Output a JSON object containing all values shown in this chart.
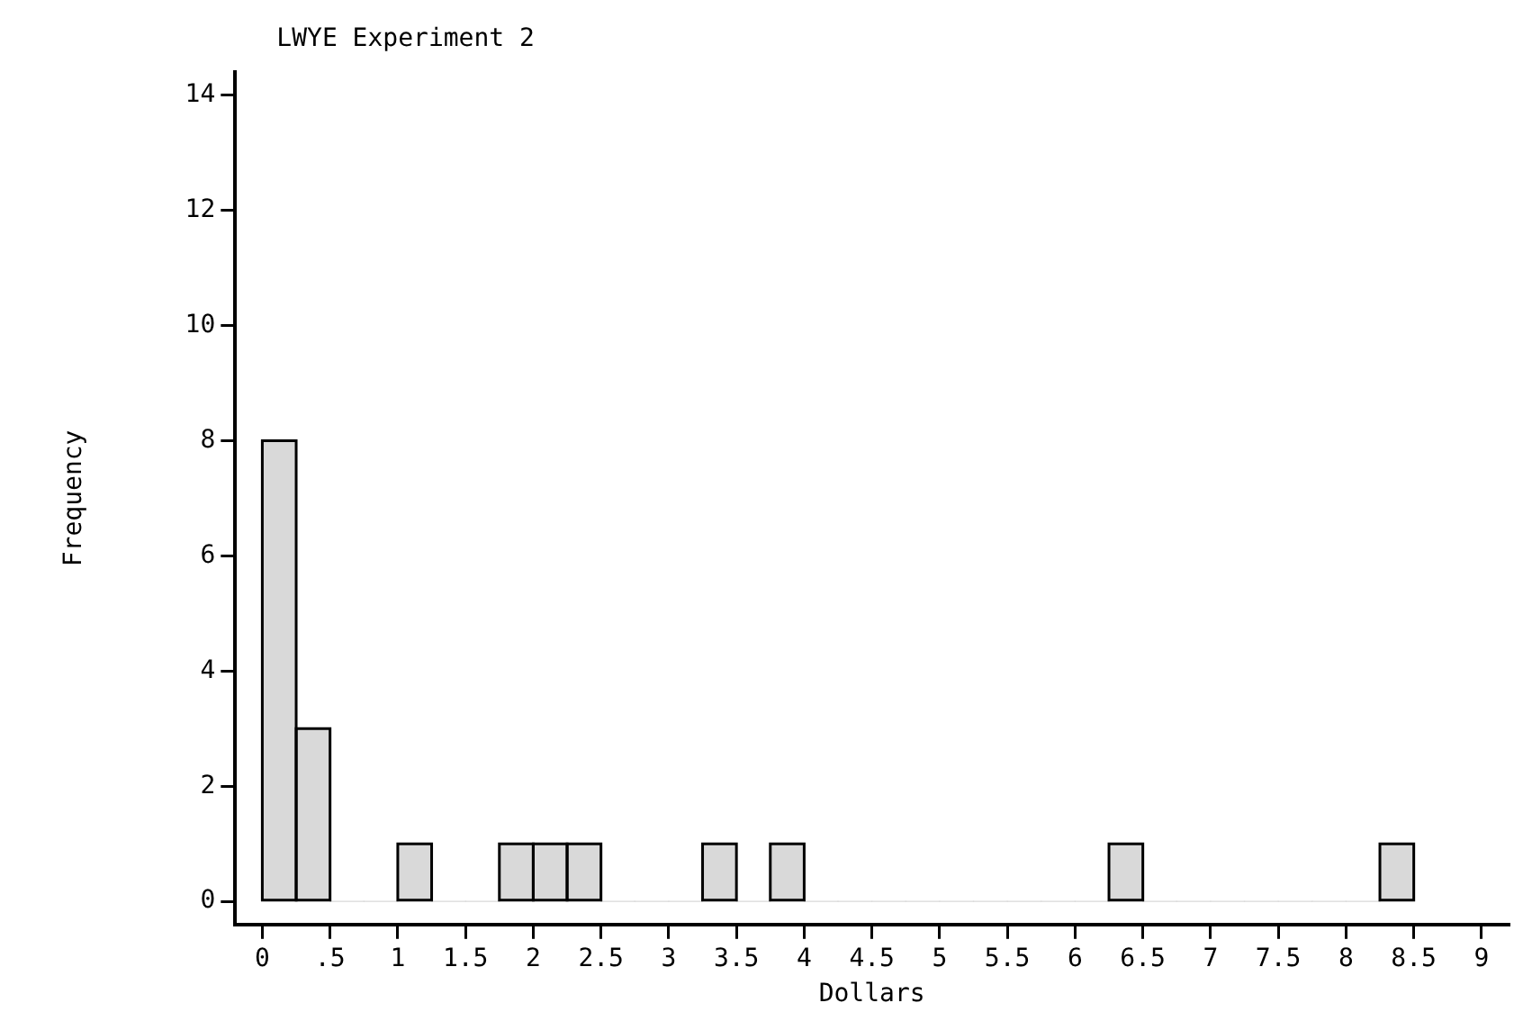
{
  "chart_data": {
    "type": "histogram",
    "title": "LWYE Experiment 2",
    "xlabel": "Dollars",
    "ylabel": "Frequency",
    "bins": [
      0,
      0.25,
      0.5,
      0.75,
      1,
      1.25,
      1.5,
      1.75,
      2,
      2.25,
      2.5,
      2.75,
      3,
      3.25,
      3.5,
      3.75,
      4,
      4.25,
      4.5,
      4.75,
      5,
      5.25,
      5.5,
      5.75,
      6,
      6.25,
      6.5,
      6.75,
      7,
      7.25,
      7.5,
      7.75,
      8,
      8.25,
      8.5
    ],
    "values": [
      8,
      3,
      0,
      0,
      1,
      0,
      0,
      1,
      1,
      1,
      0,
      0,
      0,
      1,
      0,
      1,
      0,
      0,
      0,
      0,
      0,
      0,
      0,
      0,
      0,
      1,
      0,
      0,
      0,
      0,
      0,
      0,
      0,
      1
    ],
    "color": "#d9d9d9",
    "xlim": [
      -0.2,
      9.2
    ],
    "xticks": [
      0,
      {
        "value": 0.5,
        "label": ".5"
      },
      1,
      1.5,
      2,
      2.5,
      3,
      3.5,
      4,
      4.5,
      5,
      5.5,
      6,
      6.5,
      7,
      7.5,
      8,
      8.5,
      9
    ],
    "ylim": [
      -0.4,
      14.4
    ],
    "yticks": [
      0,
      2,
      4,
      6,
      8,
      10,
      12,
      14
    ],
    "grid": false,
    "legend": false
  }
}
